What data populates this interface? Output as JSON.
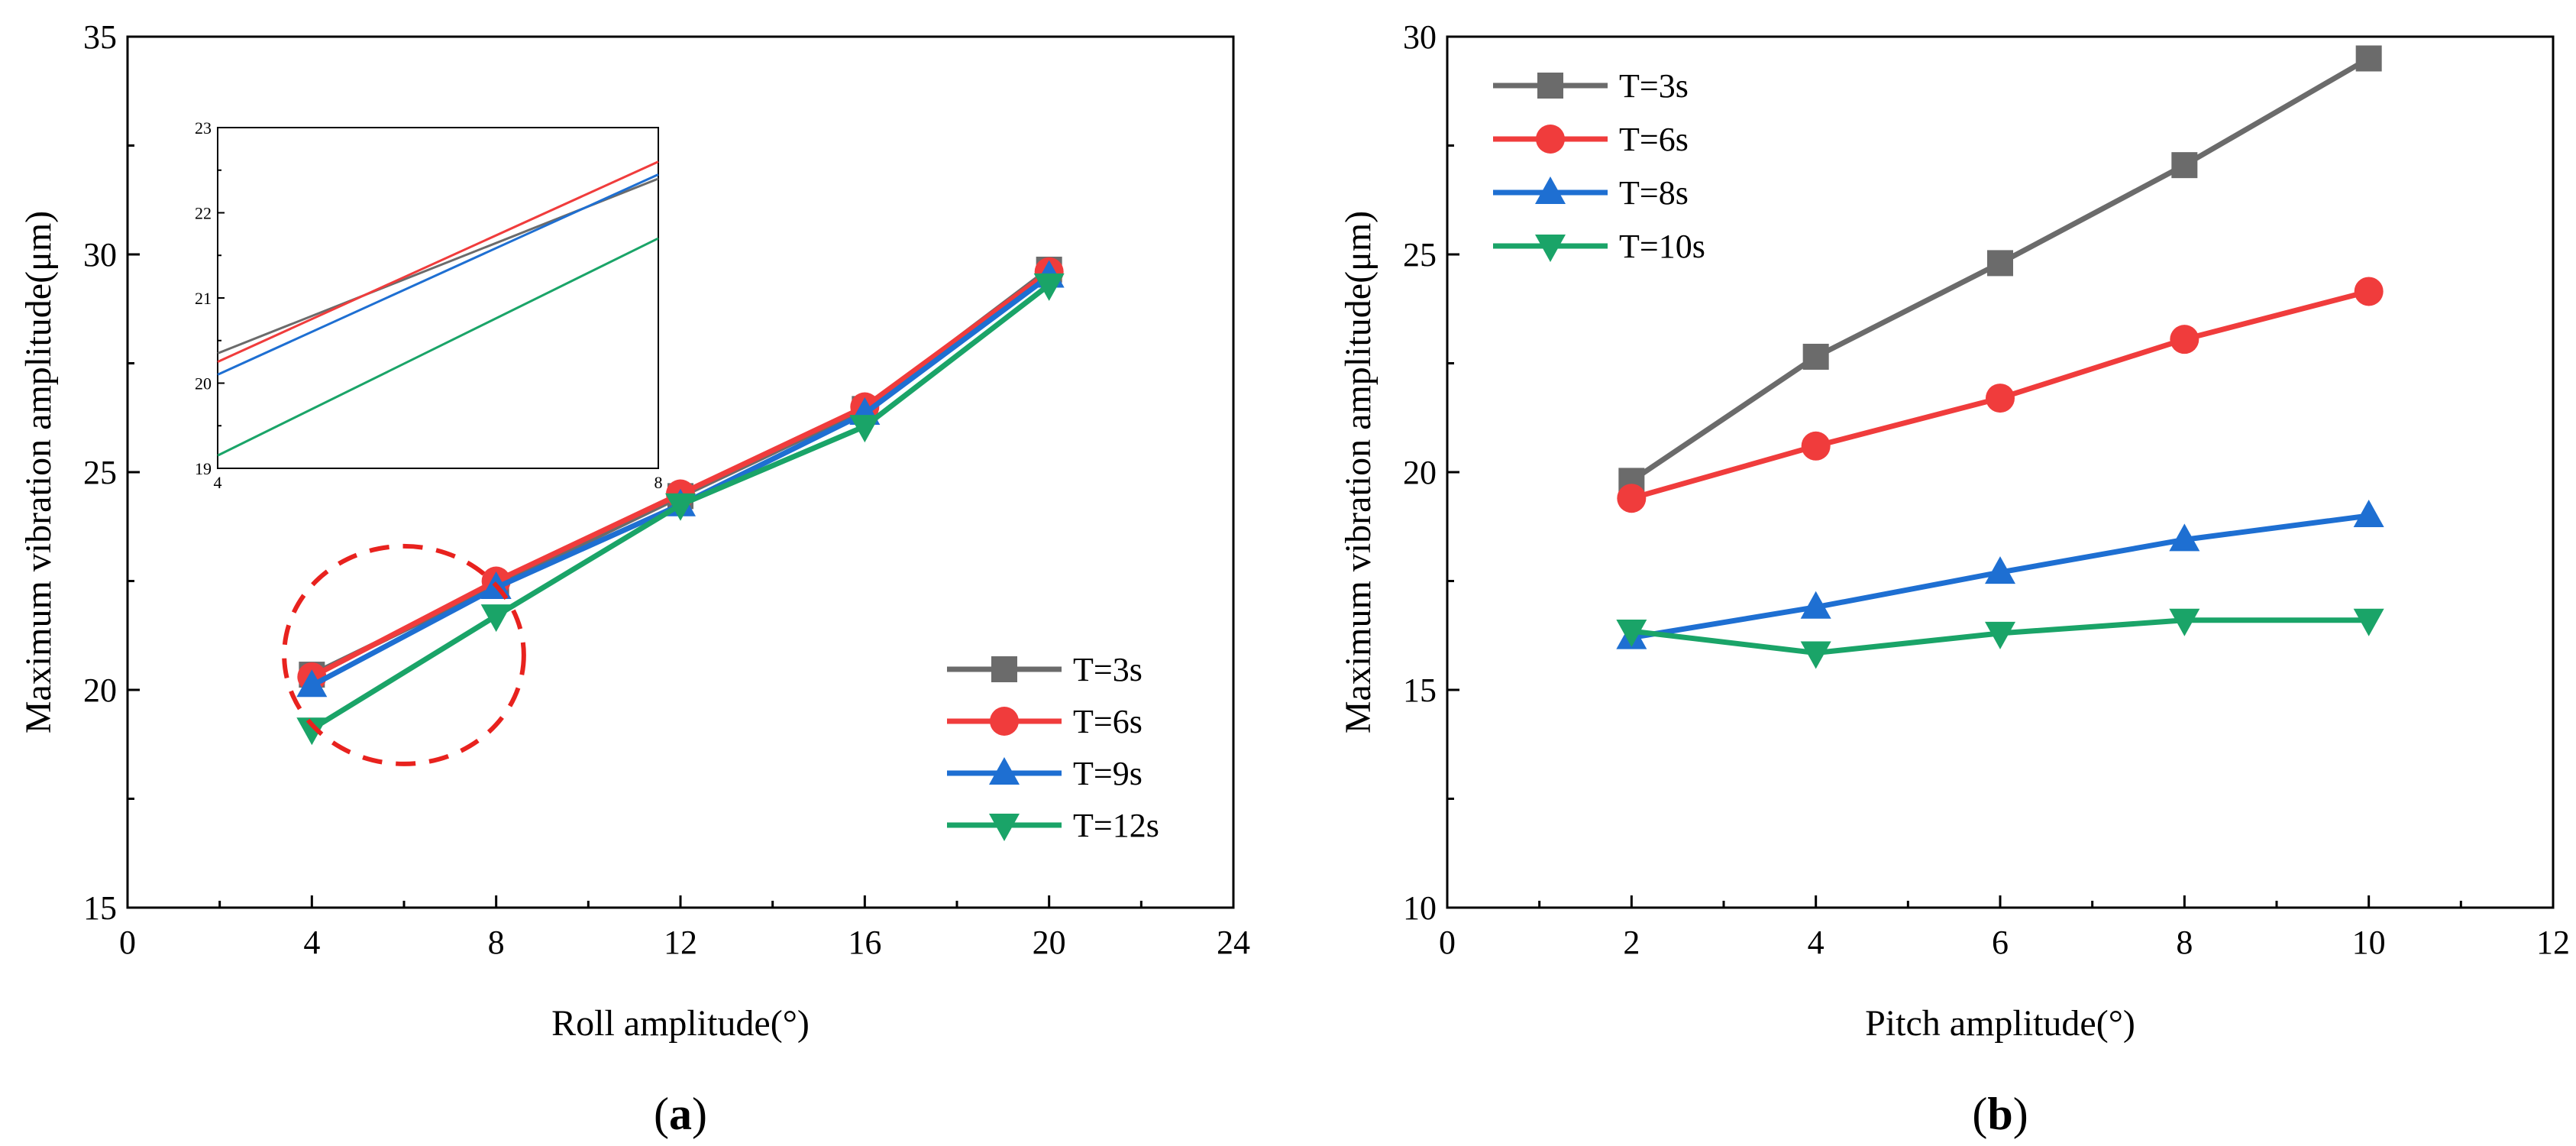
{
  "colors": {
    "gray": "#6b6b6b",
    "red": "#f03c3c",
    "blue": "#1e6fd2",
    "green": "#1aa468",
    "highlight": "#e8221e"
  },
  "chart_data": [
    {
      "type": "line",
      "panel": "a",
      "panel_label_pre": "(",
      "panel_label_letter": "a",
      "panel_label_post": ")",
      "xlabel": "Roll amplitude(°)",
      "ylabel": "Maximum vibration amplitude(μm)",
      "xlim": [
        0,
        24
      ],
      "ylim": [
        15,
        35
      ],
      "xticks": [
        0,
        4,
        8,
        12,
        16,
        20,
        24
      ],
      "yticks": [
        15,
        20,
        25,
        30,
        35
      ],
      "x": [
        4,
        8,
        12,
        16,
        20
      ],
      "legend_position": "bottom-right",
      "series": [
        {
          "name": "T=3s",
          "color": "gray",
          "marker": "square",
          "values": [
            20.35,
            22.4,
            24.45,
            26.45,
            29.65
          ]
        },
        {
          "name": "T=6s",
          "color": "red",
          "marker": "circle",
          "values": [
            20.3,
            22.5,
            24.5,
            26.5,
            29.6
          ]
        },
        {
          "name": "T=9s",
          "color": "blue",
          "marker": "triangle-up",
          "values": [
            20.1,
            22.35,
            24.25,
            26.35,
            29.5
          ]
        },
        {
          "name": "T=12s",
          "color": "green",
          "marker": "triangle-down",
          "values": [
            19.1,
            21.7,
            24.25,
            26.05,
            29.3
          ]
        }
      ],
      "annotation": {
        "type": "dashed-ellipse",
        "center": [
          6,
          20.8
        ],
        "rx": 2.6,
        "ry": 2.5,
        "color": "highlight"
      },
      "inset": {
        "xlim": [
          4,
          8
        ],
        "ylim": [
          19,
          23
        ],
        "xticks": [
          4,
          8
        ],
        "yticks": [
          19,
          20,
          21,
          22,
          23
        ],
        "series": [
          {
            "name": "T=3s",
            "color": "gray",
            "from": 20.35,
            "to": 22.4
          },
          {
            "name": "T=6s",
            "color": "red",
            "from": 20.25,
            "to": 22.6
          },
          {
            "name": "T=9s",
            "color": "blue",
            "from": 20.1,
            "to": 22.45
          },
          {
            "name": "T=12s",
            "color": "green",
            "from": 19.15,
            "to": 21.7
          }
        ]
      }
    },
    {
      "type": "line",
      "panel": "b",
      "panel_label_pre": "(",
      "panel_label_letter": "b",
      "panel_label_post": ")",
      "xlabel": "Pitch amplitude(°)",
      "ylabel": "Maximum vibration amplitude(μm)",
      "xlim": [
        0,
        12
      ],
      "ylim": [
        10,
        30
      ],
      "xticks": [
        0,
        2,
        4,
        6,
        8,
        10,
        12
      ],
      "yticks": [
        10,
        15,
        20,
        25,
        30
      ],
      "x": [
        2,
        4,
        6,
        8,
        10
      ],
      "legend_position": "top-left",
      "series": [
        {
          "name": "T=3s",
          "color": "gray",
          "marker": "square",
          "values": [
            19.8,
            22.65,
            24.8,
            27.05,
            29.5
          ]
        },
        {
          "name": "T=6s",
          "color": "red",
          "marker": "circle",
          "values": [
            19.4,
            20.6,
            21.7,
            23.05,
            24.15
          ]
        },
        {
          "name": "T=8s",
          "color": "blue",
          "marker": "triangle-up",
          "values": [
            16.2,
            16.9,
            17.7,
            18.45,
            19.0
          ]
        },
        {
          "name": "T=10s",
          "color": "green",
          "marker": "triangle-down",
          "values": [
            16.35,
            15.85,
            16.3,
            16.6,
            16.6
          ]
        }
      ]
    }
  ]
}
